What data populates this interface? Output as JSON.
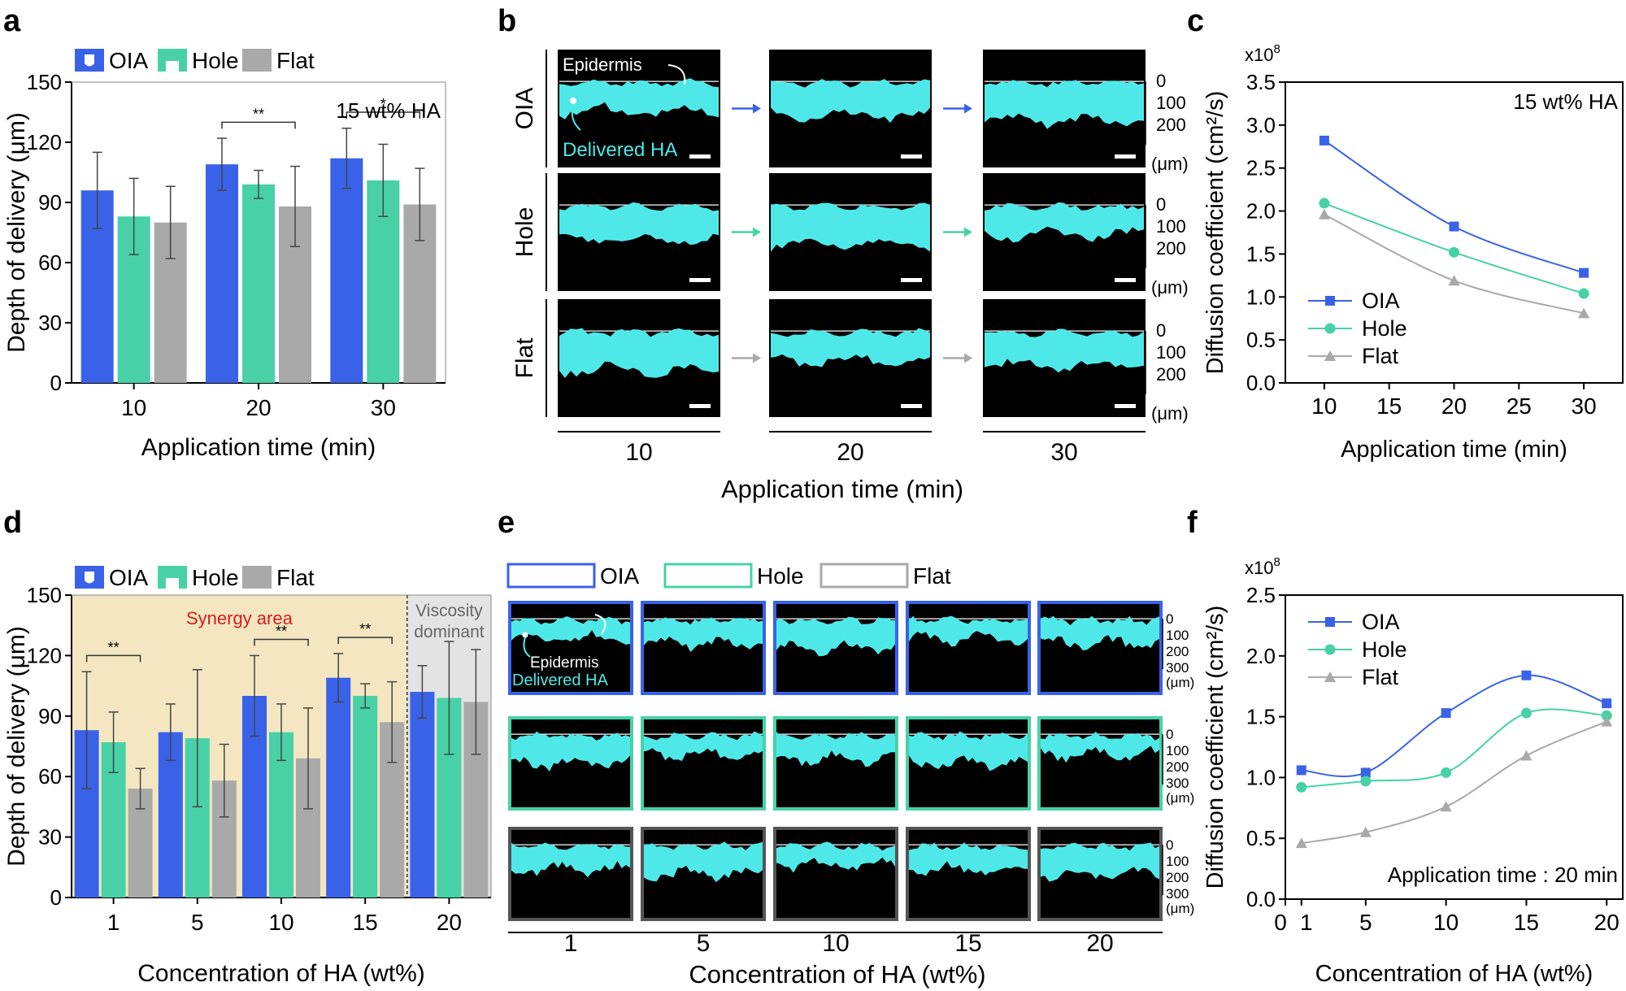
{
  "colors": {
    "oia": "#3a62e8",
    "hole": "#48d1a6",
    "flat": "#a9a9a9",
    "cyan": "#4fe8e8",
    "synergy": "#f3e6c0",
    "viscous": "#e3e3e3",
    "sig": "#d21f1f"
  },
  "panel_letters": {
    "a": "a",
    "b": "b",
    "c": "c",
    "d": "d",
    "e": "e",
    "f": "f"
  },
  "legend": {
    "oia": "OIA",
    "hole": "Hole",
    "flat": "Flat"
  },
  "panel_b": {
    "rows": [
      "OIA",
      "Hole",
      "Flat"
    ],
    "cols": [
      "10",
      "20",
      "30"
    ],
    "xlabel": "Application time (min)",
    "scale_ticks": [
      "0",
      "100",
      "200"
    ],
    "unit": "(μm)",
    "epidermis": "Epidermis",
    "delivered": "Delivered HA"
  },
  "panel_e": {
    "cols": [
      "1",
      "5",
      "10",
      "15",
      "20"
    ],
    "xlabel": "Concentration of HA (wt%)",
    "scale_ticks": [
      "0",
      "100",
      "200",
      "300"
    ],
    "unit": "(μm)",
    "epidermis": "Epidermis",
    "delivered": "Delivered HA"
  },
  "chart_data": [
    {
      "id": "a",
      "type": "bar",
      "categories": [
        "10",
        "20",
        "30"
      ],
      "series": [
        {
          "name": "OIA",
          "values": [
            96,
            109,
            112
          ],
          "errors": [
            19,
            13,
            15
          ]
        },
        {
          "name": "Hole",
          "values": [
            83,
            99,
            101
          ],
          "errors": [
            19,
            7,
            18
          ]
        },
        {
          "name": "Flat",
          "values": [
            80,
            88,
            89
          ],
          "errors": [
            18,
            20,
            18
          ]
        }
      ],
      "annotation": "15 wt% HA",
      "significance": [
        {
          "category": "20",
          "label": "**"
        },
        {
          "category": "30",
          "label": "*"
        }
      ],
      "xlabel": "Application time (min)",
      "ylabel": "Depth of delivery (μm)",
      "ylim": [
        0,
        150
      ],
      "yticks": [
        0,
        30,
        60,
        90,
        120,
        150
      ]
    },
    {
      "id": "c",
      "type": "line",
      "x": [
        10,
        20,
        30
      ],
      "series": [
        {
          "name": "OIA",
          "marker": "square",
          "values": [
            2.82,
            1.82,
            1.28
          ]
        },
        {
          "name": "Hole",
          "marker": "circle",
          "values": [
            2.09,
            1.52,
            1.04
          ]
        },
        {
          "name": "Flat",
          "marker": "triangle",
          "values": [
            1.96,
            1.19,
            0.81
          ]
        }
      ],
      "annotation": "15 wt% HA",
      "scale_label": "x10",
      "scale_exp": "8",
      "xlabel": "Application time (min)",
      "ylabel": "Diffusion coefficient (cm²/s)",
      "xlim": [
        7,
        33
      ],
      "xticks": [
        10,
        15,
        20,
        25,
        30
      ],
      "ylim": [
        0,
        3.5
      ],
      "yticks": [
        0.0,
        0.5,
        1.0,
        1.5,
        2.0,
        2.5,
        3.0,
        3.5
      ]
    },
    {
      "id": "d",
      "type": "bar",
      "categories": [
        "1",
        "5",
        "10",
        "15",
        "20"
      ],
      "series": [
        {
          "name": "OIA",
          "values": [
            83,
            82,
            100,
            109,
            102
          ],
          "errors": [
            29,
            14,
            20,
            12,
            13
          ]
        },
        {
          "name": "Hole",
          "values": [
            77,
            79,
            82,
            100,
            99
          ],
          "errors": [
            15,
            34,
            14,
            6,
            28
          ]
        },
        {
          "name": "Flat",
          "values": [
            54,
            58,
            69,
            87,
            97
          ],
          "errors": [
            10,
            18,
            25,
            20,
            26
          ]
        }
      ],
      "regions": [
        {
          "label": "Synergy area"
        },
        {
          "label1": "Viscosity",
          "label2": "dominant"
        }
      ],
      "significance": [
        {
          "category": "1",
          "label": "**"
        },
        {
          "category": "10",
          "label": "**"
        },
        {
          "category": "15",
          "label": "**"
        }
      ],
      "xlabel": "Concentration of HA (wt%)",
      "ylabel": "Depth of delivery (μm)",
      "ylim": [
        0,
        150
      ],
      "yticks": [
        0,
        30,
        60,
        90,
        120,
        150
      ]
    },
    {
      "id": "f",
      "type": "line",
      "x": [
        1,
        5,
        10,
        15,
        20
      ],
      "series": [
        {
          "name": "OIA",
          "marker": "square",
          "values": [
            1.06,
            1.04,
            1.53,
            1.84,
            1.61
          ]
        },
        {
          "name": "Hole",
          "marker": "circle",
          "values": [
            0.92,
            0.97,
            1.04,
            1.53,
            1.51
          ]
        },
        {
          "name": "Flat",
          "marker": "triangle",
          "values": [
            0.46,
            0.55,
            0.76,
            1.18,
            1.46
          ]
        }
      ],
      "annotation": "Application time : 20 min",
      "scale_label": "x10",
      "scale_exp": "8",
      "xlabel": "Concentration of HA (wt%)",
      "ylabel": "Diffusion coefficient (cm²/s)",
      "xlim": [
        0,
        21
      ],
      "xtick_labels": [
        "0",
        "1",
        "5",
        "10",
        "15",
        "20"
      ],
      "xticks": [
        0,
        1,
        5,
        10,
        15,
        20
      ],
      "ylim": [
        0,
        2.5
      ],
      "yticks": [
        0.0,
        0.5,
        1.0,
        1.5,
        2.0,
        2.5
      ]
    }
  ]
}
